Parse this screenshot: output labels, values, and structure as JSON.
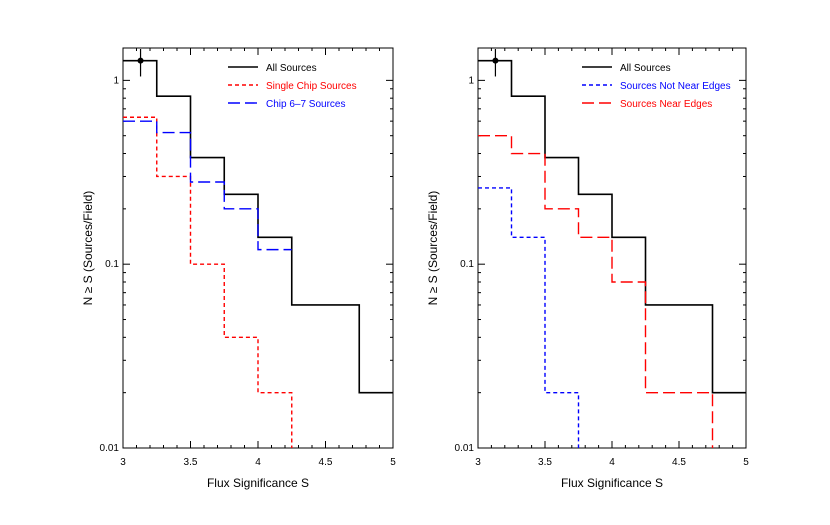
{
  "chart_data": [
    {
      "type": "line",
      "step": true,
      "title": "",
      "xlabel": "Flux Significance S",
      "ylabel": "N ≥ S (Sources/Field)",
      "xlim": [
        3,
        5
      ],
      "ylim": [
        0.01,
        1.5
      ],
      "yscale": "log",
      "xticks": [
        "3",
        "3.5",
        "4",
        "4.5",
        "5"
      ],
      "yticks": [
        "0.01",
        "0.1",
        "1"
      ],
      "errorbar_point": {
        "x": 3.13,
        "y": 1.28,
        "yerr_low": 1.05,
        "yerr_high": 1.55,
        "xerr": 0.06
      },
      "legend_position": "top-right",
      "series": [
        {
          "name": "All Sources",
          "color": "#000000",
          "dash": "solid",
          "edges": [
            3,
            3.25,
            3.5,
            3.75,
            4,
            4.25,
            4.75,
            5
          ],
          "values": [
            1.28,
            0.82,
            0.38,
            0.24,
            0.14,
            0.06,
            0.02
          ]
        },
        {
          "name": "Single Chip Sources",
          "color": "#ff0000",
          "dash": "short",
          "edges": [
            3,
            3.25,
            3.5,
            3.75,
            4,
            4.25
          ],
          "values": [
            0.63,
            0.3,
            0.1,
            0.04,
            0.02
          ],
          "drop_to_bottom": true
        },
        {
          "name": "Chip 6–7 Sources",
          "color": "#0000ff",
          "dash": "long",
          "edges": [
            3,
            3.25,
            3.5,
            3.75,
            4,
            4.25
          ],
          "values": [
            0.6,
            0.52,
            0.28,
            0.2,
            0.12
          ],
          "drop_to_bottom": false
        }
      ]
    },
    {
      "type": "line",
      "step": true,
      "title": "",
      "xlabel": "Flux Significance S",
      "ylabel": "N ≥ S (Sources/Field)",
      "xlim": [
        3,
        5
      ],
      "ylim": [
        0.01,
        1.5
      ],
      "yscale": "log",
      "xticks": [
        "3",
        "3.5",
        "4",
        "4.5",
        "5"
      ],
      "yticks": [
        "0.01",
        "0.1",
        "1"
      ],
      "errorbar_point": {
        "x": 3.13,
        "y": 1.28,
        "yerr_low": 1.05,
        "yerr_high": 1.55,
        "xerr": 0.06
      },
      "legend_position": "top-right",
      "series": [
        {
          "name": "All Sources",
          "color": "#000000",
          "dash": "solid",
          "edges": [
            3,
            3.25,
            3.5,
            3.75,
            4,
            4.25,
            4.75,
            5
          ],
          "values": [
            1.28,
            0.82,
            0.38,
            0.24,
            0.14,
            0.06,
            0.02
          ]
        },
        {
          "name": "Sources Not Near Edges",
          "color": "#0000ff",
          "dash": "short",
          "edges": [
            3,
            3.25,
            3.5,
            3.75
          ],
          "values": [
            0.26,
            0.14,
            0.02
          ],
          "drop_to_bottom": true
        },
        {
          "name": "Sources Near Edges",
          "color": "#ff0000",
          "dash": "long",
          "edges": [
            3,
            3.25,
            3.5,
            3.75,
            4,
            4.25,
            4.75
          ],
          "values": [
            0.5,
            0.4,
            0.2,
            0.14,
            0.08,
            0.02
          ],
          "drop_to_bottom": true
        }
      ]
    }
  ]
}
